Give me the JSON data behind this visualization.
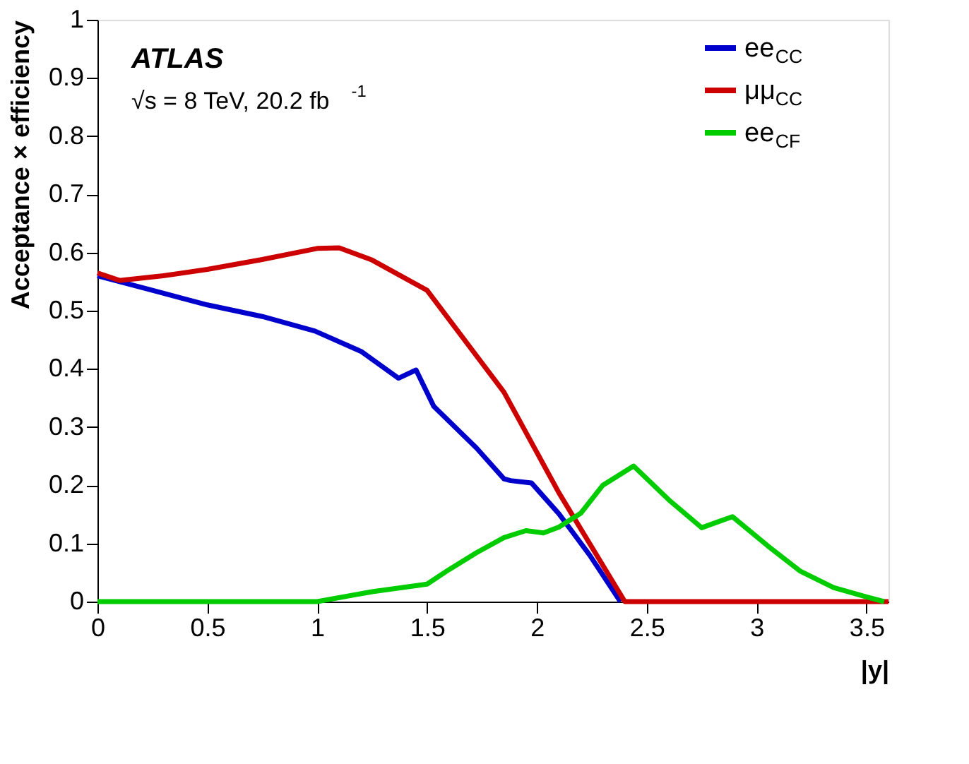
{
  "chart_data": {
    "type": "line",
    "xlabel": "|y|",
    "ylabel": "Acceptance × efficiency",
    "annotations": [
      "ATLAS",
      "√s = 8 TeV, 20.2 fb$^{-1}$"
    ],
    "xlim": [
      0,
      3.6
    ],
    "xticks": [
      0,
      0.5,
      1,
      1.5,
      2,
      2.5,
      3,
      3.5
    ],
    "ylim": [
      0,
      1
    ],
    "yticks": [
      0,
      0.1,
      0.2,
      0.3,
      0.4,
      0.5,
      0.6,
      0.7,
      0.8,
      0.9,
      1
    ],
    "grid": false,
    "legend": "top right",
    "marker": "none",
    "line_style": "solid",
    "series": [
      {
        "name": "ee$_{CC}$",
        "color": "#0000cc",
        "x": [
          0,
          0.25,
          0.5,
          0.75,
          0.99,
          1.2,
          1.37,
          1.45,
          1.53,
          1.725,
          1.85,
          1.88,
          1.975,
          2.1,
          2.24,
          2.38
        ],
        "values": [
          0.56,
          0.535,
          0.51,
          0.49,
          0.465,
          0.43,
          0.384,
          0.398,
          0.336,
          0.264,
          0.211,
          0.208,
          0.204,
          0.151,
          0.08,
          0
        ]
      },
      {
        "name": "μμ$_{CC}$",
        "color": "#cc0000",
        "x": [
          0,
          0.1,
          0.3,
          0.5,
          0.75,
          1.0,
          1.1,
          1.25,
          1.5,
          1.85,
          2.1,
          2.4,
          3.6
        ],
        "values": [
          0.565,
          0.552,
          0.56,
          0.571,
          0.588,
          0.607,
          0.608,
          0.587,
          0.535,
          0.36,
          0.187,
          0,
          0
        ]
      },
      {
        "name": "ee$_{CF}$",
        "color": "#00cc00",
        "x": [
          0,
          1.0,
          1.25,
          1.5,
          1.6,
          1.725,
          1.85,
          1.95,
          2.03,
          2.1,
          2.2,
          2.3,
          2.44,
          2.6,
          2.75,
          2.89,
          3.05,
          3.2,
          3.35,
          3.5,
          3.58
        ],
        "values": [
          0,
          0,
          0.017,
          0.03,
          0.055,
          0.084,
          0.11,
          0.122,
          0.118,
          0.128,
          0.152,
          0.2,
          0.233,
          0.175,
          0.127,
          0.146,
          0.096,
          0.052,
          0.024,
          0.008,
          0
        ]
      }
    ]
  }
}
